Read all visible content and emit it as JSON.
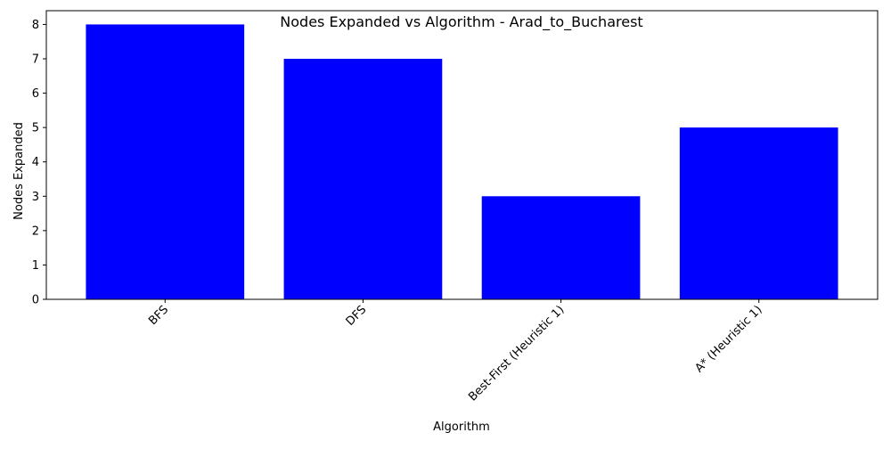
{
  "chart_data": {
    "type": "bar",
    "title": "Nodes Expanded vs Algorithm - Arad_to_Bucharest",
    "xlabel": "Algorithm",
    "ylabel": "Nodes Expanded",
    "categories": [
      "BFS",
      "DFS",
      "Best-First (Heuristic 1)",
      "A* (Heuristic 1)"
    ],
    "values": [
      8,
      7,
      3,
      5
    ],
    "ylim": [
      0,
      8.4
    ],
    "yticks": [
      0,
      1,
      2,
      3,
      4,
      5,
      6,
      7,
      8
    ],
    "bar_color": "#0000ff",
    "grid": false,
    "legend": "none",
    "x_tick_rotation_deg": 45
  }
}
